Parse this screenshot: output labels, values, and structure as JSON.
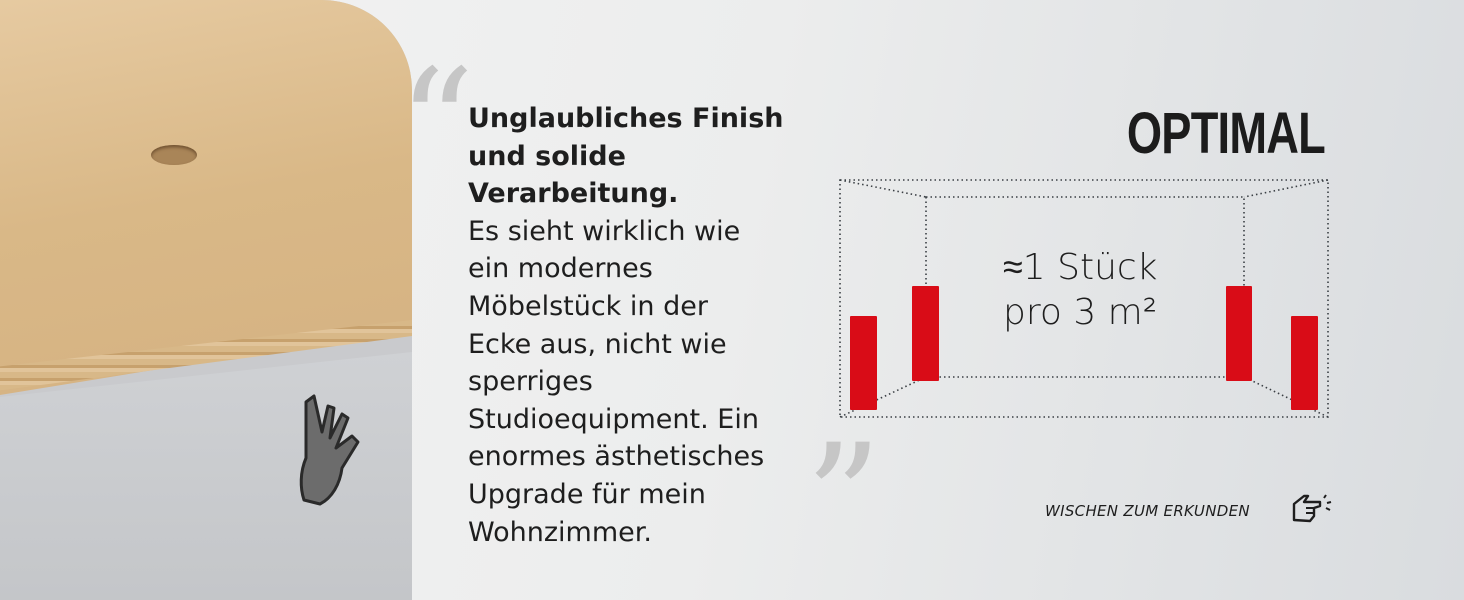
{
  "review": {
    "headline": [
      "Unglaubliches Finish",
      "und solide",
      "Verarbeitung."
    ],
    "body": [
      "Es sieht wirklich wie",
      "ein modernes",
      "Möbelstück in der",
      "Ecke aus, nicht wie",
      "sperriges",
      "Studioequipment. Ein",
      "enormes ästhetisches",
      "Upgrade für mein",
      "Wohnzimmer."
    ],
    "open_quote": "“",
    "close_quote": "”"
  },
  "diagram": {
    "title": "OPTIMAL",
    "count_line1": "≈1 Stück",
    "count_line2": "pro 3 m²",
    "panel_color": "#d90c17",
    "panel_count": 4
  },
  "swipe_hint": {
    "label": "WISCHEN ZUM ERKUNDEN",
    "icon": "pointing-hand-icon"
  },
  "product": {
    "icon": "hand-touch-icon"
  }
}
